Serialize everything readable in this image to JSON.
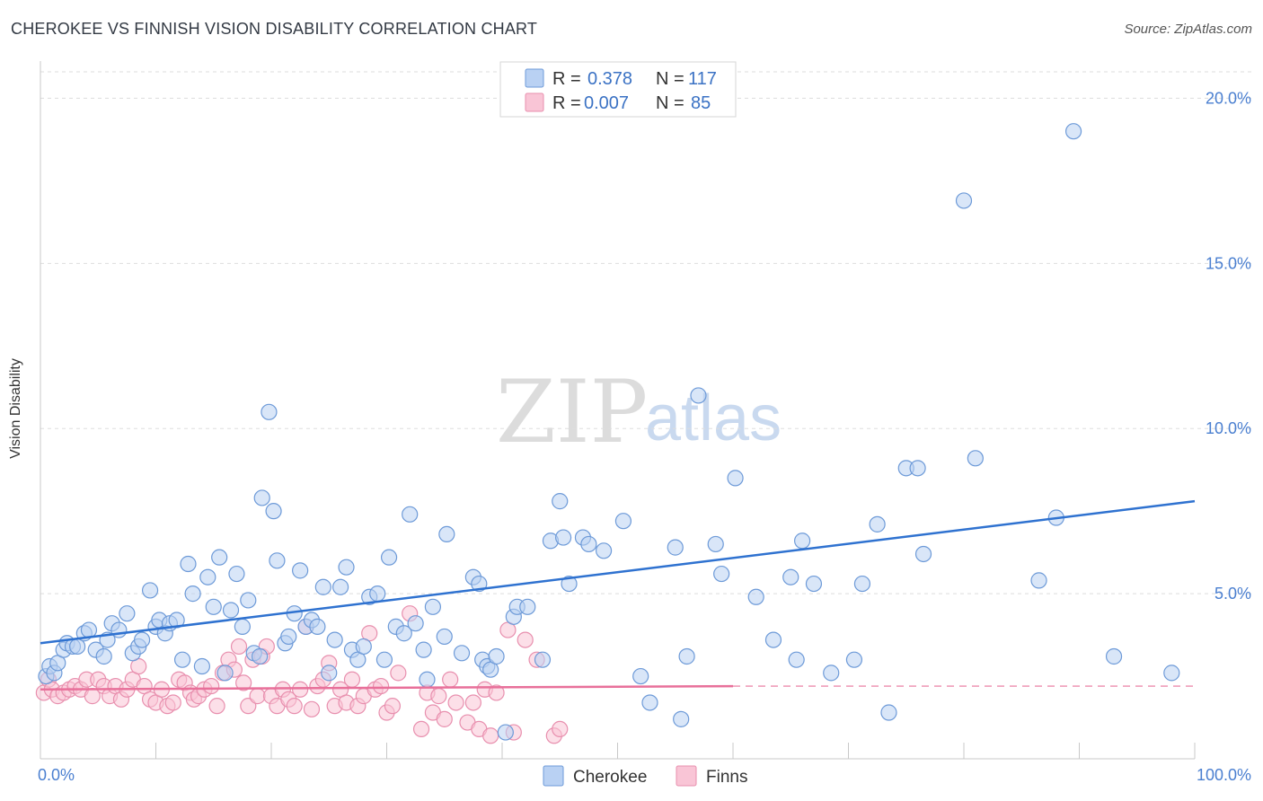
{
  "title": "CHEROKEE VS FINNISH VISION DISABILITY CORRELATION CHART",
  "source": "Source: ZipAtlas.com",
  "watermark": {
    "zip": "ZIP",
    "atlas": "atlas"
  },
  "colors": {
    "cherokee_fill": "#b9d1f3",
    "cherokee_stroke": "#6d9ad8",
    "cherokee_line": "#2f72d0",
    "finns_fill": "#f9c5d6",
    "finns_stroke": "#e88fae",
    "finns_line": "#e8709a",
    "tick_label": "#4a7fd0"
  },
  "legend": {
    "rows": [
      {
        "r_label": "R =",
        "r_value": "0.378",
        "n_label": "N =",
        "n_value": "117"
      },
      {
        "r_label": "R =",
        "r_value": "0.007",
        "n_label": "N =",
        "n_value": "85"
      }
    ]
  },
  "chart_data": {
    "type": "scatter",
    "title": "CHEROKEE VS FINNISH VISION DISABILITY CORRELATION CHART",
    "xlabel": "",
    "ylabel": "Vision Disability",
    "xlim": [
      0,
      100
    ],
    "ylim": [
      0,
      20.8
    ],
    "y_ticks": [
      5,
      10,
      15,
      20
    ],
    "y_tick_labels": [
      "5.0%",
      "10.0%",
      "15.0%",
      "20.0%"
    ],
    "x_tick_labels": [
      "0.0%",
      "100.0%"
    ],
    "grid": true,
    "legend_position": "top-center",
    "series": [
      {
        "name": "Cherokee",
        "trend": {
          "x": [
            0,
            100
          ],
          "y": [
            3.5,
            7.8
          ]
        },
        "points": [
          [
            0.5,
            2.5
          ],
          [
            0.8,
            2.8
          ],
          [
            1.2,
            2.6
          ],
          [
            1.5,
            2.9
          ],
          [
            2,
            3.3
          ],
          [
            2.3,
            3.5
          ],
          [
            2.8,
            3.4
          ],
          [
            3.2,
            3.4
          ],
          [
            3.8,
            3.8
          ],
          [
            4.2,
            3.9
          ],
          [
            4.8,
            3.3
          ],
          [
            5.5,
            3.1
          ],
          [
            5.8,
            3.6
          ],
          [
            6.2,
            4.1
          ],
          [
            6.8,
            3.9
          ],
          [
            7.5,
            4.4
          ],
          [
            8,
            3.2
          ],
          [
            8.5,
            3.4
          ],
          [
            8.8,
            3.6
          ],
          [
            9.5,
            5.1
          ],
          [
            10,
            4
          ],
          [
            10.3,
            4.2
          ],
          [
            10.8,
            3.8
          ],
          [
            11.2,
            4.1
          ],
          [
            11.8,
            4.2
          ],
          [
            12.3,
            3
          ],
          [
            12.8,
            5.9
          ],
          [
            13.2,
            5
          ],
          [
            14,
            2.8
          ],
          [
            14.5,
            5.5
          ],
          [
            15,
            4.6
          ],
          [
            15.5,
            6.1
          ],
          [
            16,
            2.6
          ],
          [
            16.5,
            4.5
          ],
          [
            17,
            5.6
          ],
          [
            17.5,
            4
          ],
          [
            18,
            4.8
          ],
          [
            18.5,
            3.2
          ],
          [
            19,
            3.1
          ],
          [
            19.2,
            7.9
          ],
          [
            19.8,
            10.5
          ],
          [
            20.2,
            7.5
          ],
          [
            20.5,
            6
          ],
          [
            21.2,
            3.5
          ],
          [
            21.5,
            3.7
          ],
          [
            22,
            4.4
          ],
          [
            22.5,
            5.7
          ],
          [
            23,
            4
          ],
          [
            23.5,
            4.2
          ],
          [
            24,
            4
          ],
          [
            24.5,
            5.2
          ],
          [
            25,
            2.6
          ],
          [
            25.5,
            3.6
          ],
          [
            26,
            5.2
          ],
          [
            26.5,
            5.8
          ],
          [
            27,
            3.3
          ],
          [
            27.5,
            3
          ],
          [
            28,
            3.4
          ],
          [
            28.5,
            4.9
          ],
          [
            29.2,
            5
          ],
          [
            29.8,
            3
          ],
          [
            30.2,
            6.1
          ],
          [
            30.8,
            4
          ],
          [
            31.5,
            3.8
          ],
          [
            32,
            7.4
          ],
          [
            32.5,
            4.1
          ],
          [
            33.2,
            3.3
          ],
          [
            33.5,
            2.4
          ],
          [
            34,
            4.6
          ],
          [
            35,
            3.7
          ],
          [
            35.2,
            6.8
          ],
          [
            36.5,
            3.2
          ],
          [
            37.5,
            5.5
          ],
          [
            38,
            5.3
          ],
          [
            38.3,
            3
          ],
          [
            38.7,
            2.8
          ],
          [
            39,
            2.7
          ],
          [
            39.5,
            3.1
          ],
          [
            40.3,
            0.8
          ],
          [
            41,
            4.3
          ],
          [
            41.3,
            4.6
          ],
          [
            42.2,
            4.6
          ],
          [
            43.5,
            3
          ],
          [
            44.2,
            6.6
          ],
          [
            45,
            7.8
          ],
          [
            45.3,
            6.7
          ],
          [
            45.8,
            5.3
          ],
          [
            47,
            6.7
          ],
          [
            47.5,
            6.5
          ],
          [
            48.8,
            6.3
          ],
          [
            50.5,
            7.2
          ],
          [
            52,
            2.5
          ],
          [
            52.8,
            1.7
          ],
          [
            55,
            6.4
          ],
          [
            55.5,
            1.2
          ],
          [
            56,
            3.1
          ],
          [
            57,
            11
          ],
          [
            58.5,
            6.5
          ],
          [
            59,
            5.6
          ],
          [
            60.2,
            8.5
          ],
          [
            62,
            4.9
          ],
          [
            63.5,
            3.6
          ],
          [
            65,
            5.5
          ],
          [
            65.5,
            3
          ],
          [
            66,
            6.6
          ],
          [
            67,
            5.3
          ],
          [
            68.5,
            2.6
          ],
          [
            70.5,
            3
          ],
          [
            71.2,
            5.3
          ],
          [
            72.5,
            7.1
          ],
          [
            73.5,
            1.4
          ],
          [
            75,
            8.8
          ],
          [
            76,
            8.8
          ],
          [
            76.5,
            6.2
          ],
          [
            80,
            16.9
          ],
          [
            81,
            9.1
          ],
          [
            86.5,
            5.4
          ],
          [
            88,
            7.3
          ],
          [
            89.5,
            19
          ],
          [
            93,
            3.1
          ],
          [
            98,
            2.6
          ]
        ]
      },
      {
        "name": "Finns",
        "trend": {
          "x": [
            0,
            60
          ],
          "y": [
            2.1,
            2.2
          ]
        },
        "trend_extension": {
          "x": [
            60,
            100
          ],
          "y": [
            2.2,
            2.2
          ]
        },
        "points": [
          [
            0.3,
            2
          ],
          [
            0.7,
            2.4
          ],
          [
            1,
            2.1
          ],
          [
            1.5,
            1.9
          ],
          [
            2,
            2
          ],
          [
            2.5,
            2.1
          ],
          [
            3,
            2.2
          ],
          [
            3.5,
            2.1
          ],
          [
            4,
            2.4
          ],
          [
            4.5,
            1.9
          ],
          [
            5,
            2.4
          ],
          [
            5.5,
            2.2
          ],
          [
            6,
            1.9
          ],
          [
            6.5,
            2.2
          ],
          [
            7,
            1.8
          ],
          [
            7.5,
            2.1
          ],
          [
            8,
            2.4
          ],
          [
            8.5,
            2.8
          ],
          [
            9,
            2.2
          ],
          [
            9.5,
            1.8
          ],
          [
            10,
            1.7
          ],
          [
            10.5,
            2.1
          ],
          [
            11,
            1.6
          ],
          [
            11.5,
            1.7
          ],
          [
            12,
            2.4
          ],
          [
            12.5,
            2.3
          ],
          [
            13,
            2
          ],
          [
            13.3,
            1.8
          ],
          [
            13.7,
            1.9
          ],
          [
            14.2,
            2.1
          ],
          [
            14.8,
            2.2
          ],
          [
            15.3,
            1.6
          ],
          [
            15.8,
            2.6
          ],
          [
            16.3,
            3
          ],
          [
            16.8,
            2.7
          ],
          [
            17.2,
            3.4
          ],
          [
            17.6,
            2.3
          ],
          [
            18,
            1.6
          ],
          [
            18.4,
            3
          ],
          [
            18.8,
            1.9
          ],
          [
            19.2,
            3.1
          ],
          [
            19.6,
            3.4
          ],
          [
            20,
            1.9
          ],
          [
            20.5,
            1.6
          ],
          [
            21,
            2.1
          ],
          [
            21.5,
            1.8
          ],
          [
            22,
            1.6
          ],
          [
            22.5,
            2.1
          ],
          [
            23,
            4
          ],
          [
            23.5,
            1.5
          ],
          [
            24,
            2.2
          ],
          [
            24.5,
            2.4
          ],
          [
            25,
            2.9
          ],
          [
            25.5,
            1.6
          ],
          [
            26,
            2.1
          ],
          [
            26.5,
            1.7
          ],
          [
            27,
            2.4
          ],
          [
            27.5,
            1.6
          ],
          [
            28,
            1.9
          ],
          [
            28.5,
            3.8
          ],
          [
            29,
            2.1
          ],
          [
            29.5,
            2.2
          ],
          [
            30,
            1.4
          ],
          [
            30.5,
            1.6
          ],
          [
            31,
            2.6
          ],
          [
            32,
            4.4
          ],
          [
            33,
            0.9
          ],
          [
            33.5,
            2
          ],
          [
            34,
            1.4
          ],
          [
            34.5,
            1.9
          ],
          [
            35,
            1.2
          ],
          [
            35.5,
            2.4
          ],
          [
            36,
            1.7
          ],
          [
            37,
            1.1
          ],
          [
            37.5,
            1.7
          ],
          [
            38,
            0.9
          ],
          [
            38.5,
            2.1
          ],
          [
            39,
            0.7
          ],
          [
            39.5,
            2
          ],
          [
            40.5,
            3.9
          ],
          [
            41,
            0.8
          ],
          [
            42,
            3.6
          ],
          [
            43,
            3
          ],
          [
            44.5,
            0.7
          ],
          [
            45,
            0.9
          ]
        ]
      }
    ]
  },
  "bottom_legend": [
    {
      "label": "Cherokee"
    },
    {
      "label": "Finns"
    }
  ]
}
